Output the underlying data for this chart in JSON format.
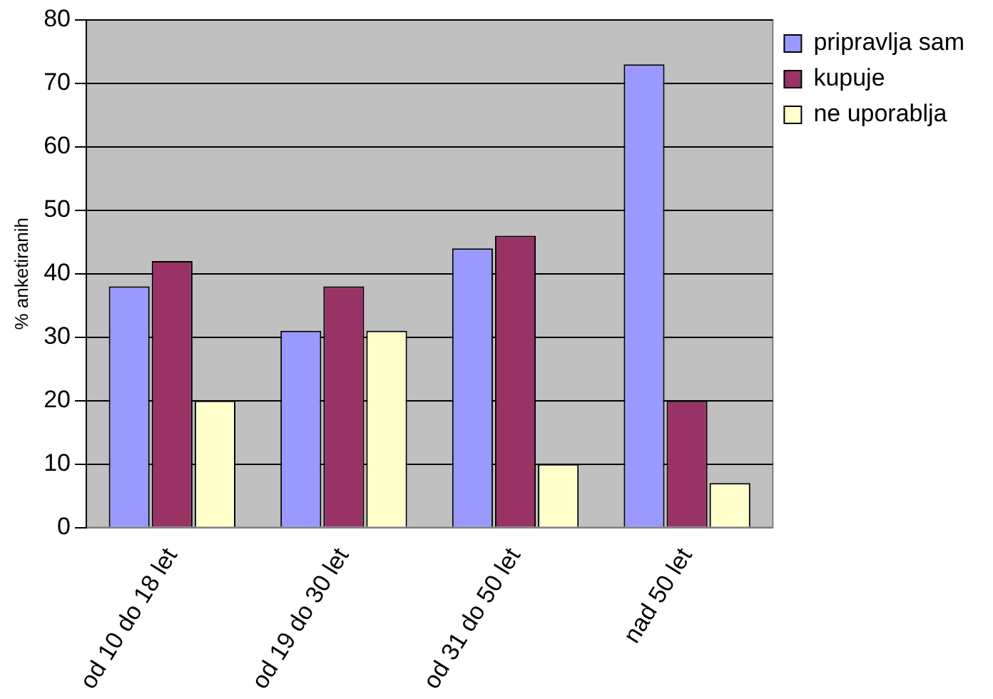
{
  "chart_data": {
    "type": "bar",
    "ylabel": "% anketiranih",
    "categories": [
      "od 10 do 18 let",
      "od 19 do 30 let",
      "od 31 do 50 let",
      "nad 50 let"
    ],
    "series": [
      {
        "name": "pripravlja sam",
        "color": "#9999ff",
        "values": [
          38,
          31,
          44,
          73
        ]
      },
      {
        "name": "kupuje",
        "color": "#993366",
        "values": [
          42,
          38,
          46,
          20
        ]
      },
      {
        "name": "ne uporablja",
        "color": "#ffffcc",
        "values": [
          20,
          31,
          10,
          7
        ]
      }
    ],
    "ylim": [
      0,
      80
    ],
    "yticks": [
      0,
      10,
      20,
      30,
      40,
      50,
      60,
      70,
      80
    ],
    "grid": "y",
    "legend": "top right"
  }
}
